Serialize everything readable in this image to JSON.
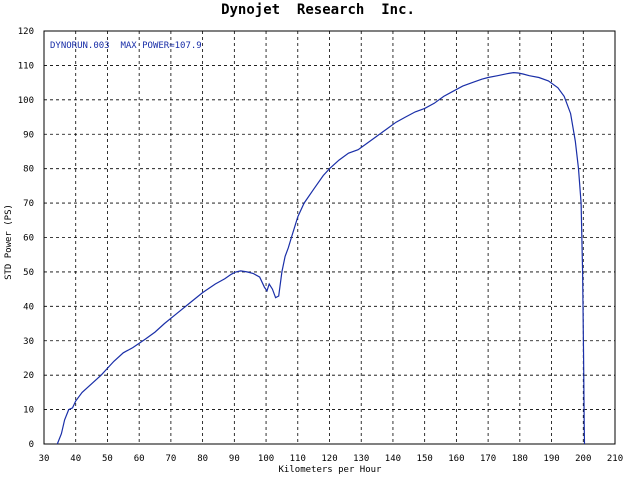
{
  "chart_data": {
    "type": "line",
    "title": "Dynojet  Research  Inc.",
    "xlabel": "Kilometers per Hour",
    "ylabel": "STD Power (PS)",
    "xlim": [
      30,
      210
    ],
    "ylim": [
      0,
      120
    ],
    "xticks": [
      30,
      40,
      50,
      60,
      70,
      80,
      90,
      100,
      110,
      120,
      130,
      140,
      150,
      160,
      170,
      180,
      190,
      200,
      210
    ],
    "yticks": [
      0,
      10,
      20,
      30,
      40,
      50,
      60,
      70,
      80,
      90,
      100,
      110,
      120
    ],
    "grid": true,
    "annotation": "DYNORUN.003  MAX POWER=107.9",
    "colors": {
      "series": "#1a2fa8",
      "annotation": "#1a2fa8",
      "grid": "#000000",
      "axis": "#000000"
    },
    "series": [
      {
        "name": "DYNORUN.003",
        "x": [
          34.2,
          35.5,
          36.5,
          37.8,
          39,
          40,
          42,
          45,
          48,
          52,
          55,
          58,
          62,
          65,
          68,
          72,
          76,
          80,
          84,
          87,
          89,
          90.5,
          92,
          94,
          96,
          98,
          99.5,
          100.3,
          101,
          102,
          103,
          104,
          105,
          106,
          107,
          108,
          109,
          110,
          112,
          115,
          118,
          120,
          123,
          126,
          129,
          132,
          135,
          138,
          141,
          144,
          147,
          150,
          153,
          156,
          159,
          162,
          165,
          168,
          170,
          173,
          176,
          178,
          179.5,
          181,
          183,
          186,
          189,
          192,
          194,
          196,
          197.5,
          198.5,
          199.3,
          199.8,
          200.1,
          200.3,
          200.4
        ],
        "y": [
          0,
          3,
          7,
          10,
          10.5,
          12.5,
          15,
          17.5,
          20,
          24,
          26.5,
          28,
          30.5,
          32.5,
          35,
          38,
          41,
          44,
          46.5,
          48,
          49.3,
          50,
          50.3,
          50,
          49.5,
          48.5,
          45.5,
          44.5,
          46.5,
          45,
          42.5,
          43,
          50,
          54.5,
          57,
          60,
          63,
          66,
          70,
          74,
          78,
          80,
          82.5,
          84.5,
          85.5,
          87.5,
          89.5,
          91.5,
          93.5,
          95,
          96.5,
          97.5,
          99,
          101,
          102.5,
          104,
          105,
          106,
          106.5,
          107,
          107.6,
          107.9,
          107.8,
          107.5,
          107,
          106.5,
          105.5,
          103.5,
          101,
          96,
          88,
          80,
          70,
          50,
          25,
          6,
          0
        ]
      }
    ]
  }
}
